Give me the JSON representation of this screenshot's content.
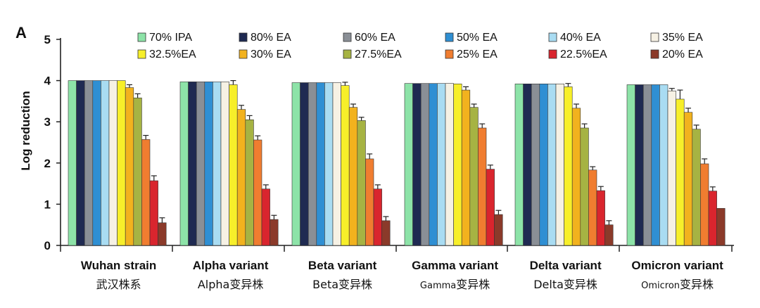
{
  "chart_data": {
    "type": "bar",
    "panel_label": "A",
    "ylabel": "Log reduction",
    "ylim": [
      0,
      5
    ],
    "yticks": [
      "0",
      "1",
      "2",
      "3",
      "4",
      "5"
    ],
    "categories": [
      {
        "en": "Wuhan strain",
        "cn": "武汉株系"
      },
      {
        "en": "Alpha variant",
        "cn": "Alpha变异株"
      },
      {
        "en": "Beta variant",
        "cn": "Beta变异株"
      },
      {
        "en": "Gamma variant",
        "cn": "Gamma变异株"
      },
      {
        "en": "Delta variant",
        "cn": "Delta变异株"
      },
      {
        "en": "Omicron variant",
        "cn": "Omicron变异株"
      }
    ],
    "series": [
      {
        "name": "70% IPA",
        "color": "#8de3a8",
        "values": [
          4.0,
          3.97,
          3.95,
          3.93,
          3.92,
          3.9
        ],
        "errors": [
          0,
          0,
          0,
          0,
          0,
          0
        ]
      },
      {
        "name": "80% EA",
        "color": "#1f2a52",
        "values": [
          4.0,
          3.97,
          3.95,
          3.93,
          3.92,
          3.9
        ],
        "errors": [
          0,
          0,
          0,
          0,
          0,
          0
        ]
      },
      {
        "name": "60% EA",
        "color": "#8a8f96",
        "values": [
          4.0,
          3.97,
          3.95,
          3.93,
          3.92,
          3.9
        ],
        "errors": [
          0,
          0,
          0,
          0,
          0,
          0
        ]
      },
      {
        "name": "50% EA",
        "color": "#2f8fd3",
        "values": [
          4.0,
          3.97,
          3.95,
          3.93,
          3.92,
          3.9
        ],
        "errors": [
          0,
          0,
          0,
          0,
          0,
          0
        ]
      },
      {
        "name": "40% EA",
        "color": "#a9dcf2",
        "values": [
          4.0,
          3.97,
          3.95,
          3.93,
          3.92,
          3.9
        ],
        "errors": [
          0,
          0,
          0,
          0,
          0,
          0
        ]
      },
      {
        "name": "35% EA",
        "color": "#f6f1e4",
        "values": [
          4.0,
          3.97,
          3.95,
          3.93,
          3.92,
          3.75
        ],
        "errors": [
          0,
          0,
          0,
          0,
          0,
          0.06
        ]
      },
      {
        "name": "32.5%EA",
        "color": "#f7ef2a",
        "values": [
          4.0,
          3.9,
          3.88,
          3.92,
          3.85,
          3.55
        ],
        "errors": [
          0,
          0.1,
          0.08,
          0,
          0.08,
          0.22
        ]
      },
      {
        "name": "30% EA",
        "color": "#f2b21e",
        "values": [
          3.83,
          3.3,
          3.35,
          3.77,
          3.33,
          3.23
        ],
        "errors": [
          0.07,
          0.1,
          0.08,
          0.08,
          0.1,
          0.1
        ]
      },
      {
        "name": "27.5%EA",
        "color": "#a6b343",
        "values": [
          3.58,
          3.05,
          3.03,
          3.35,
          2.85,
          2.82
        ],
        "errors": [
          0.1,
          0.1,
          0.08,
          0.08,
          0.1,
          0.1
        ]
      },
      {
        "name": "25% EA",
        "color": "#f07d30",
        "values": [
          2.57,
          2.56,
          2.1,
          2.85,
          1.83,
          1.98
        ],
        "errors": [
          0.1,
          0.1,
          0.12,
          0.1,
          0.08,
          0.12
        ]
      },
      {
        "name": "22.5%EA",
        "color": "#d9252e",
        "values": [
          1.57,
          1.37,
          1.37,
          1.85,
          1.33,
          1.32
        ],
        "errors": [
          0.12,
          0.1,
          0.1,
          0.1,
          0.1,
          0.1
        ]
      },
      {
        "name": "20% EA",
        "color": "#8b3a2a",
        "values": [
          0.55,
          0.63,
          0.6,
          0.75,
          0.5,
          0.9
        ],
        "errors": [
          0.12,
          0.1,
          0.1,
          0.1,
          0.1,
          0
        ]
      }
    ]
  }
}
